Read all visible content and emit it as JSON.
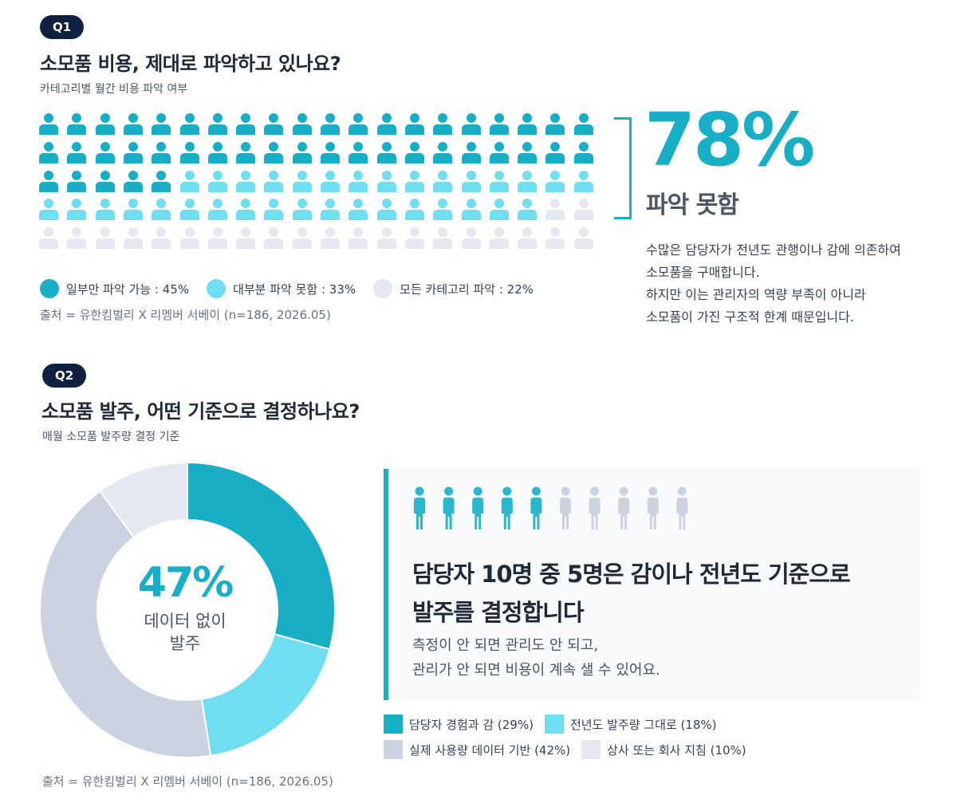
{
  "q1": {
    "badge": "Q1",
    "title": "소모품 비용, 제대로 파악하고 있나요?",
    "subtitle": "카테고리별 월간 비용 파악 여부",
    "highlight_pct": "78%",
    "highlight_label": "파악 못함",
    "description": [
      "수많은 담당자가 전년도 관행이나 감에 의존하여",
      "소모품을 구매합니다.",
      "하지만 이는 관리자의 역량 부족이 아니라",
      "소모품이 가진 구조적 한계 때문입니다."
    ],
    "legend": [
      {
        "label": "일부만 파악 가능 : 45%",
        "color": "#17aec6"
      },
      {
        "label": "대부분 파악 못함 : 33%",
        "color": "#6fdef0"
      },
      {
        "label": "모든 카테고리 파악 : 22%",
        "color": "#e5e8f1"
      }
    ],
    "source": "출처 = 유한킴벌리 X 리멤버 서베이 (n=186, 2026.05)"
  },
  "q2": {
    "badge": "Q2",
    "title": "소모품 발주, 어떤 기준으로 결정하나요?",
    "subtitle": "매월 소모품 발주량 결정 기준",
    "center_pct": "47%",
    "center_label_line1": "데이터 없이",
    "center_label_line2": "발주",
    "card_heading_line1": "담당자 10명 중 5명은 감이나 전년도 기준으로",
    "card_heading_line2": "발주를 결정합니다",
    "card_body_line1": "측정이 안 되면 관리도 안 되고,",
    "card_body_line2": "관리가 안 되면 비용이 계속 샐 수 있어요.",
    "legend": [
      {
        "label": "담당자 경험과 감 (29%)",
        "color": "#17aec6"
      },
      {
        "label": "전년도 발주량 그대로 (18%)",
        "color": "#6fdef0"
      },
      {
        "label": "실제 사용량 데이터 기반 (42%)",
        "color": "#cbd3e1"
      },
      {
        "label": "상사 또는 회사 지침 (10%)",
        "color": "#e5e8f1"
      }
    ],
    "source": "출처 = 유한킴벌리 X 리멤버 서베이 (n=186, 2026.05)"
  },
  "chart_data": [
    {
      "type": "pictogram",
      "total_icons": 100,
      "series": [
        {
          "name": "일부만 파악 가능",
          "value": 45,
          "color": "#17aec6"
        },
        {
          "name": "대부분 파악 못함",
          "value": 33,
          "color": "#6fdef0"
        },
        {
          "name": "모든 카테고리 파악",
          "value": 22,
          "color": "#e5e8f1"
        }
      ]
    },
    {
      "type": "pie",
      "donut": true,
      "categories": [
        "담당자 경험과 감",
        "전년도 발주량 그대로",
        "실제 사용량 데이터 기반",
        "상사 또는 회사 지침"
      ],
      "values": [
        29,
        18,
        42,
        10
      ],
      "colors": [
        "#17aec6",
        "#6fdef0",
        "#cbd3e1",
        "#e5e8f1"
      ]
    },
    {
      "type": "pictogram",
      "total_icons": 10,
      "series": [
        {
          "value": 5,
          "color": "#2bb8cf"
        },
        {
          "value": 5,
          "color": "#cbd3e1"
        }
      ]
    }
  ]
}
